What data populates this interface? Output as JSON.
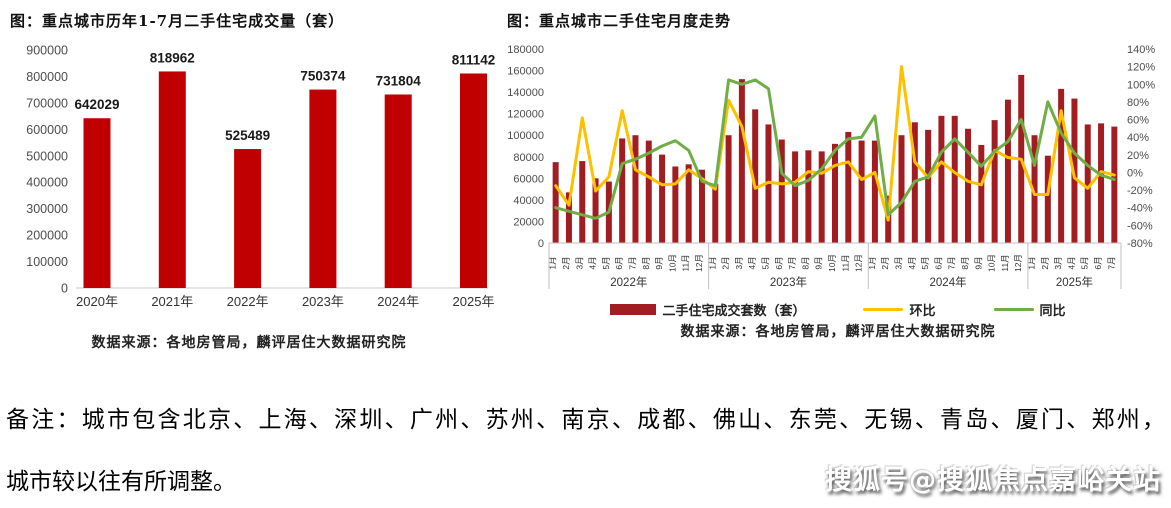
{
  "page": {
    "note_line1": "备注：城市包含北京、上海、深圳、广州、苏州、南京、成都、佛山、东莞、无锡、青岛、厦门、郑州，",
    "note_line2": "城市较以往有所调整。",
    "watermark": "搜狐号@搜狐焦点嘉峪关站"
  },
  "left_chart": {
    "title": "图：重点城市历年1-7月二手住宅成交量（套）",
    "source": "数据来源：各地房管局，麟评居住大数据研究院"
  },
  "right_chart": {
    "title": "图：重点城市二手住宅月度走势",
    "source": "数据来源：各地房管局，麟评居住大数据研究院"
  },
  "colors": {
    "left_bar": "#C00000",
    "right_bar": "#A21D21",
    "mom_line": "#FFC000",
    "yoy_line": "#70AD47",
    "axis_text": "#4d4d4d",
    "label_text": "#1a1a1a"
  },
  "chart_data": [
    {
      "type": "bar",
      "title": "图：重点城市历年1-7月二手住宅成交量（套）",
      "categories": [
        "2020年",
        "2021年",
        "2022年",
        "2023年",
        "2024年",
        "2025年"
      ],
      "values": [
        642029,
        818962,
        525489,
        750374,
        731804,
        811142
      ],
      "data_labels": [
        "642029",
        "818962",
        "525489",
        "750374",
        "731804",
        "811142"
      ],
      "xlabel": "",
      "ylabel": "",
      "ylim": [
        0,
        900000
      ],
      "ytick_step": 100000,
      "grid": false,
      "bar_color": "#C00000"
    },
    {
      "type": "bar+line combo",
      "title": "图：重点城市二手住宅月度走势",
      "year_groups": [
        {
          "label": "2022年",
          "months": [
            "1月",
            "2月",
            "3月",
            "4月",
            "5月",
            "6月",
            "7月",
            "8月",
            "9月",
            "10月",
            "11月",
            "12月"
          ]
        },
        {
          "label": "2023年",
          "months": [
            "1月",
            "2月",
            "3月",
            "4月",
            "5月",
            "6月",
            "7月",
            "8月",
            "9月",
            "10月",
            "11月",
            "12月"
          ]
        },
        {
          "label": "2024年",
          "months": [
            "1月",
            "2月",
            "3月",
            "4月",
            "5月",
            "6月",
            "7月",
            "8月",
            "9月",
            "10月",
            "11月",
            "12月"
          ]
        },
        {
          "label": "2025年",
          "months": [
            "1月",
            "2月",
            "3月",
            "4月",
            "5月",
            "6月",
            "7月"
          ]
        }
      ],
      "left_axis": {
        "min": 0,
        "max": 180000,
        "step": 20000
      },
      "right_axis": {
        "min": -80,
        "max": 140,
        "step": 20,
        "suffix": "%"
      },
      "grid": false,
      "legend_position": "bottom",
      "series": [
        {
          "name": "二手住宅成交套数（套）",
          "type": "bar",
          "axis": "left",
          "color": "#A21D21",
          "values": [
            75000,
            47000,
            76000,
            60000,
            57000,
            97000,
            100000,
            95000,
            82000,
            71000,
            73000,
            68000,
            55000,
            100000,
            152000,
            124000,
            110000,
            96000,
            85000,
            86000,
            85000,
            92000,
            103000,
            95000,
            95000,
            44000,
            100000,
            112000,
            105000,
            118000,
            118000,
            106000,
            91000,
            114000,
            133000,
            156000,
            100000,
            81000,
            143000,
            134000,
            110000,
            111000,
            108000
          ]
        },
        {
          "name": "环比",
          "type": "line",
          "axis": "right",
          "color": "#FFC000",
          "values": [
            -15,
            -37,
            62,
            -21,
            -5,
            70,
            3,
            -5,
            -14,
            -13,
            3,
            -7,
            -19,
            82,
            52,
            -18,
            -11,
            -13,
            -11,
            1,
            -1,
            8,
            12,
            -8,
            0,
            -54,
            120,
            12,
            -6,
            12,
            0,
            -10,
            -14,
            25,
            17,
            15,
            -25,
            -25,
            70,
            -6,
            -18,
            1,
            -3
          ]
        },
        {
          "name": "同比",
          "type": "line",
          "axis": "right",
          "color": "#70AD47",
          "values": [
            -40,
            -44,
            -48,
            -52,
            -45,
            10,
            15,
            22,
            30,
            36,
            25,
            -10,
            -15,
            105,
            100,
            105,
            95,
            -1,
            -15,
            -9,
            4,
            25,
            38,
            40,
            64,
            -48,
            -34,
            -10,
            -5,
            23,
            38,
            23,
            7,
            24,
            35,
            60,
            8,
            80,
            45,
            22,
            8,
            -3,
            -8
          ]
        }
      ]
    }
  ]
}
